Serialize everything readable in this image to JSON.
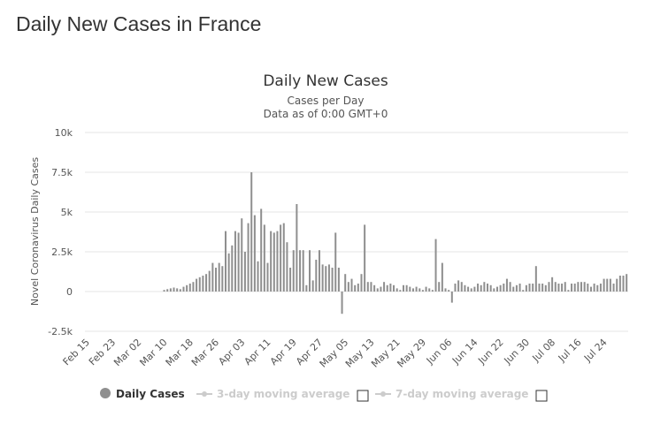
{
  "page": {
    "title": "Daily New Cases in France"
  },
  "chart_data": {
    "type": "bar",
    "title": "Daily New Cases",
    "subtitle": [
      "Cases per Day",
      "Data as of 0:00 GMT+0"
    ],
    "ylabel": "Novel Coronavirus Daily Cases",
    "xlabel": "",
    "start_date": "Feb 15",
    "ylim": [
      -2500,
      10000
    ],
    "yticks": [
      {
        "value": 10000,
        "label": "10k"
      },
      {
        "value": 7500,
        "label": "7.5k"
      },
      {
        "value": 5000,
        "label": "5k"
      },
      {
        "value": 2500,
        "label": "2.5k"
      },
      {
        "value": 0,
        "label": "0"
      },
      {
        "value": -2500,
        "label": "-2.5k"
      }
    ],
    "xtick_labels": [
      "Feb 15",
      "Feb 23",
      "Mar 02",
      "Mar 10",
      "Mar 18",
      "Mar 26",
      "Apr 03",
      "Apr 11",
      "Apr 19",
      "Apr 27",
      "May 05",
      "May 13",
      "May 21",
      "May 29",
      "Jun 06",
      "Jun 14",
      "Jun 22",
      "Jun 30",
      "Jul 08",
      "Jul 16",
      "Jul 24"
    ],
    "grid": true,
    "series": [
      {
        "name": "Daily Cases",
        "color": "#8f8f8f",
        "values": [
          0,
          0,
          0,
          0,
          0,
          0,
          0,
          0,
          0,
          0,
          0,
          0,
          0,
          0,
          0,
          0,
          0,
          0,
          0,
          0,
          0,
          0,
          0,
          0,
          100,
          150,
          200,
          250,
          200,
          150,
          300,
          400,
          500,
          600,
          800,
          900,
          1000,
          1100,
          1300,
          1800,
          1500,
          1800,
          1600,
          3800,
          2400,
          2900,
          3800,
          3700,
          4600,
          2500,
          4300,
          7500,
          4800,
          1900,
          5200,
          4200,
          1800,
          3800,
          3700,
          3800,
          4200,
          4300,
          3100,
          1500,
          2600,
          5500,
          2600,
          2600,
          400,
          2600,
          700,
          2000,
          2600,
          1700,
          1600,
          1700,
          1500,
          3700,
          1500,
          -1400,
          1100,
          600,
          800,
          400,
          500,
          1100,
          4200,
          600,
          600,
          400,
          200,
          300,
          600,
          400,
          500,
          400,
          200,
          100,
          400,
          400,
          300,
          200,
          300,
          200,
          100,
          300,
          200,
          100,
          3300,
          600,
          1800,
          200,
          100,
          -700,
          500,
          700,
          600,
          400,
          300,
          200,
          300,
          500,
          400,
          600,
          500,
          400,
          200,
          300,
          400,
          500,
          800,
          600,
          300,
          400,
          500,
          100,
          400,
          500,
          500,
          1600,
          500,
          500,
          400,
          600,
          900,
          600,
          500,
          500,
          600,
          100,
          500,
          500,
          600,
          600,
          600,
          500,
          300,
          500,
          400,
          500,
          800,
          800,
          800,
          500,
          800,
          1000,
          1000,
          1100
        ]
      }
    ],
    "legend": [
      {
        "label": "Daily Cases",
        "active": true,
        "color": "#8f8f8f"
      },
      {
        "label": "3-day moving average",
        "active": false,
        "color": "#cccccc"
      },
      {
        "label": "7-day moving average",
        "active": false,
        "color": "#cccccc"
      }
    ]
  }
}
